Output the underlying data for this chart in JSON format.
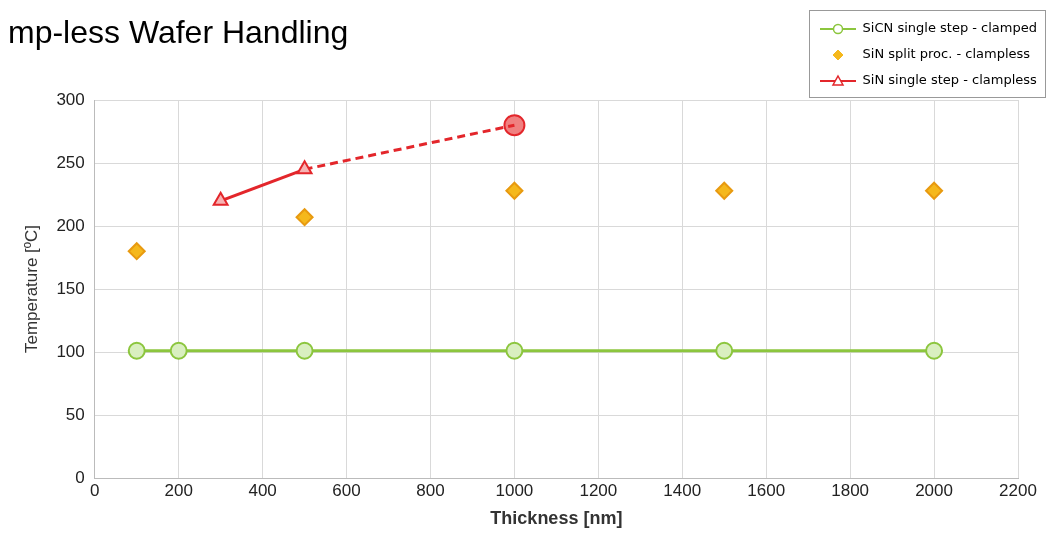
{
  "chart_data": {
    "type": "line",
    "title": "mp-less Wafer Handling",
    "xlabel": "Thickness [nm]",
    "ylabel": "Temperature [ºC]",
    "xlim": [
      0,
      2200
    ],
    "xticks": [
      0,
      200,
      400,
      600,
      800,
      1000,
      1200,
      1400,
      1600,
      1800,
      2000,
      2200
    ],
    "ylim": [
      0,
      300
    ],
    "yticks": [
      0,
      50,
      100,
      150,
      200,
      250,
      300
    ],
    "grid": true,
    "legend": "top right",
    "series": [
      {
        "name": "SiCN single step - clamped",
        "color": "#8cc63e",
        "marker": "circle",
        "line_style": "solid",
        "x": [
          100,
          200,
          500,
          1000,
          1500,
          2000
        ],
        "values": [
          101,
          101,
          101,
          101,
          101,
          101
        ]
      },
      {
        "name": "SiN split proc. - clampless",
        "type": "scatter",
        "color": "#f5b81c",
        "marker": "diamond",
        "x": [
          100,
          500,
          1000,
          1500,
          2000
        ],
        "values": [
          180,
          207,
          228,
          228,
          228
        ]
      },
      {
        "name": "SiN single step - clampless",
        "color": "#e3262b",
        "marker": "triangle",
        "line_style": "solid",
        "x": [
          300,
          500
        ],
        "values": [
          220,
          245
        ]
      },
      {
        "color": "#e3262b",
        "marker": "none",
        "line_style": "dashed",
        "x": [
          500,
          1000
        ],
        "values": [
          245,
          280
        ]
      },
      {
        "type": "scatter",
        "color": "#e3262b",
        "marker": "circle",
        "x": [
          1000
        ],
        "values": [
          280
        ]
      }
    ]
  }
}
